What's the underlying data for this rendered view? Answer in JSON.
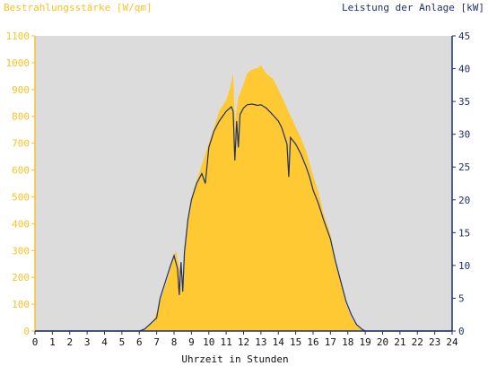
{
  "chart_data": {
    "type": "area",
    "title_left": "Bestrahlungsstärke [W/qm]",
    "title_right": "Leistung der Anlage [kW]",
    "xlabel": "Uhrzeit in Stunden",
    "xlim": [
      0,
      24
    ],
    "x_ticks": [
      "0",
      "1",
      "2",
      "3",
      "4",
      "5",
      "6",
      "7",
      "8",
      "9",
      "10",
      "11",
      "12",
      "13",
      "14",
      "15",
      "16",
      "17",
      "18",
      "19",
      "20",
      "21",
      "22",
      "23",
      "24"
    ],
    "y_left": {
      "range": [
        0,
        1100
      ],
      "ticks": [
        "0",
        "100",
        "200",
        "300",
        "400",
        "500",
        "600",
        "700",
        "800",
        "900",
        "1000",
        "1100"
      ],
      "color": "#f7c22a"
    },
    "y_right": {
      "range": [
        0,
        45
      ],
      "ticks": [
        "0",
        "5",
        "10",
        "15",
        "20",
        "25",
        "30",
        "35",
        "40",
        "45"
      ],
      "color": "#1f3168"
    },
    "grid": false,
    "colors": {
      "plot_bg": "#dcdcdc",
      "fill": "#ffc933",
      "line": "#1f3168"
    },
    "series": [
      {
        "axis": "left",
        "style": "area",
        "points": [
          [
            0,
            0
          ],
          [
            6,
            0
          ],
          [
            6.2,
            5
          ],
          [
            6.5,
            15
          ],
          [
            6.8,
            35
          ],
          [
            7,
            70
          ],
          [
            7.3,
            130
          ],
          [
            7.6,
            190
          ],
          [
            7.9,
            260
          ],
          [
            8.1,
            300
          ],
          [
            8.3,
            240
          ],
          [
            8.45,
            150
          ],
          [
            8.6,
            300
          ],
          [
            8.8,
            410
          ],
          [
            9,
            500
          ],
          [
            9.3,
            560
          ],
          [
            9.6,
            620
          ],
          [
            10,
            700
          ],
          [
            10.3,
            760
          ],
          [
            10.6,
            820
          ],
          [
            11,
            860
          ],
          [
            11.2,
            900
          ],
          [
            11.4,
            960
          ],
          [
            11.5,
            780
          ],
          [
            11.7,
            870
          ],
          [
            12,
            920
          ],
          [
            12.2,
            960
          ],
          [
            12.5,
            975
          ],
          [
            12.8,
            980
          ],
          [
            13,
            990
          ],
          [
            13.3,
            960
          ],
          [
            13.7,
            940
          ],
          [
            14,
            900
          ],
          [
            14.3,
            860
          ],
          [
            14.5,
            830
          ],
          [
            14.8,
            790
          ],
          [
            15,
            760
          ],
          [
            15.3,
            720
          ],
          [
            15.6,
            670
          ],
          [
            16,
            580
          ],
          [
            16.3,
            520
          ],
          [
            16.6,
            440
          ],
          [
            17,
            360
          ],
          [
            17.3,
            260
          ],
          [
            17.6,
            180
          ],
          [
            17.9,
            100
          ],
          [
            18.2,
            50
          ],
          [
            18.5,
            20
          ],
          [
            18.8,
            5
          ],
          [
            19,
            0
          ],
          [
            24,
            0
          ]
        ]
      },
      {
        "axis": "right",
        "style": "line",
        "points": [
          [
            0,
            0
          ],
          [
            6,
            0
          ],
          [
            6.3,
            0.3
          ],
          [
            6.6,
            1
          ],
          [
            7,
            2
          ],
          [
            7.2,
            5
          ],
          [
            7.5,
            7.5
          ],
          [
            7.8,
            10
          ],
          [
            8,
            11.5
          ],
          [
            8.2,
            9.5
          ],
          [
            8.3,
            5.5
          ],
          [
            8.4,
            10.5
          ],
          [
            8.5,
            6
          ],
          [
            8.6,
            12
          ],
          [
            8.8,
            17
          ],
          [
            9,
            20
          ],
          [
            9.3,
            22.5
          ],
          [
            9.6,
            24
          ],
          [
            9.8,
            22.5
          ],
          [
            10,
            28
          ],
          [
            10.3,
            30.5
          ],
          [
            10.6,
            32
          ],
          [
            11,
            33.5
          ],
          [
            11.3,
            34.2
          ],
          [
            11.4,
            33.5
          ],
          [
            11.5,
            26
          ],
          [
            11.6,
            32
          ],
          [
            11.7,
            28
          ],
          [
            11.8,
            33
          ],
          [
            12,
            34
          ],
          [
            12.2,
            34.5
          ],
          [
            12.5,
            34.6
          ],
          [
            12.8,
            34.4
          ],
          [
            13,
            34.5
          ],
          [
            13.3,
            34
          ],
          [
            13.6,
            33.2
          ],
          [
            14,
            32
          ],
          [
            14.2,
            31
          ],
          [
            14.5,
            28.5
          ],
          [
            14.6,
            23.5
          ],
          [
            14.7,
            29.5
          ],
          [
            15,
            28.5
          ],
          [
            15.3,
            27
          ],
          [
            15.6,
            25
          ],
          [
            15.8,
            23.5
          ],
          [
            16,
            21.5
          ],
          [
            16.3,
            19.5
          ],
          [
            16.6,
            17
          ],
          [
            17,
            14
          ],
          [
            17.3,
            10.5
          ],
          [
            17.6,
            7.5
          ],
          [
            17.9,
            4.5
          ],
          [
            18.2,
            2.5
          ],
          [
            18.5,
            1
          ],
          [
            18.8,
            0.3
          ],
          [
            19,
            0
          ],
          [
            24,
            0
          ]
        ]
      }
    ]
  }
}
